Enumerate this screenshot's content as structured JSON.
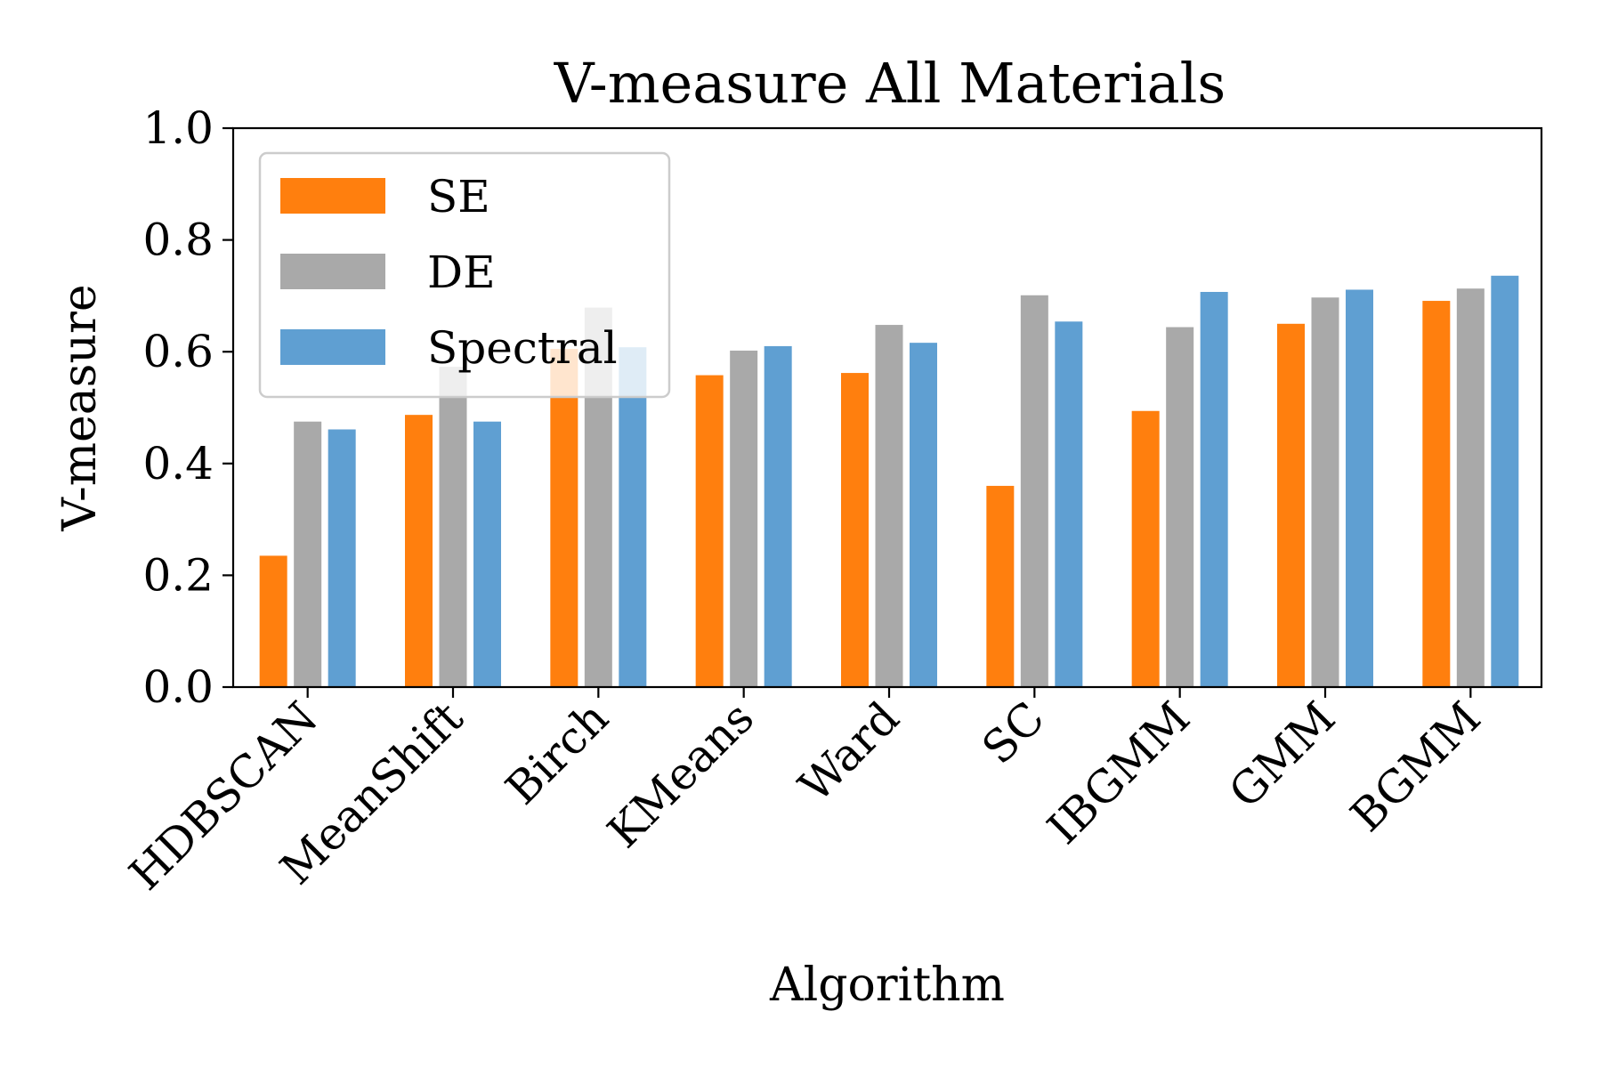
{
  "chart_data": {
    "type": "bar",
    "title": "V-measure All Materials",
    "xlabel": "Algorithm",
    "ylabel": "V-measure",
    "ylim": [
      0,
      1.0
    ],
    "yticks": [
      "0.0",
      "0.2",
      "0.4",
      "0.6",
      "0.8",
      "1.0"
    ],
    "categories": [
      "HDBSCAN",
      "MeanShift",
      "Birch",
      "KMeans",
      "Ward",
      "SC",
      "IBGMM",
      "GMM",
      "BGMM"
    ],
    "series": [
      {
        "name": "SE",
        "color": "#ff7f0e",
        "values": [
          0.235,
          0.487,
          0.605,
          0.558,
          0.562,
          0.36,
          0.494,
          0.65,
          0.691
        ]
      },
      {
        "name": "DE",
        "color": "#a9a9a9",
        "values": [
          0.475,
          0.573,
          0.679,
          0.602,
          0.648,
          0.701,
          0.644,
          0.697,
          0.713
        ]
      },
      {
        "name": "Spectral",
        "color": "#5f9fd2",
        "values": [
          0.461,
          0.475,
          0.608,
          0.61,
          0.616,
          0.654,
          0.707,
          0.711,
          0.736
        ]
      }
    ],
    "grid": false,
    "legend_position": "upper-left"
  }
}
